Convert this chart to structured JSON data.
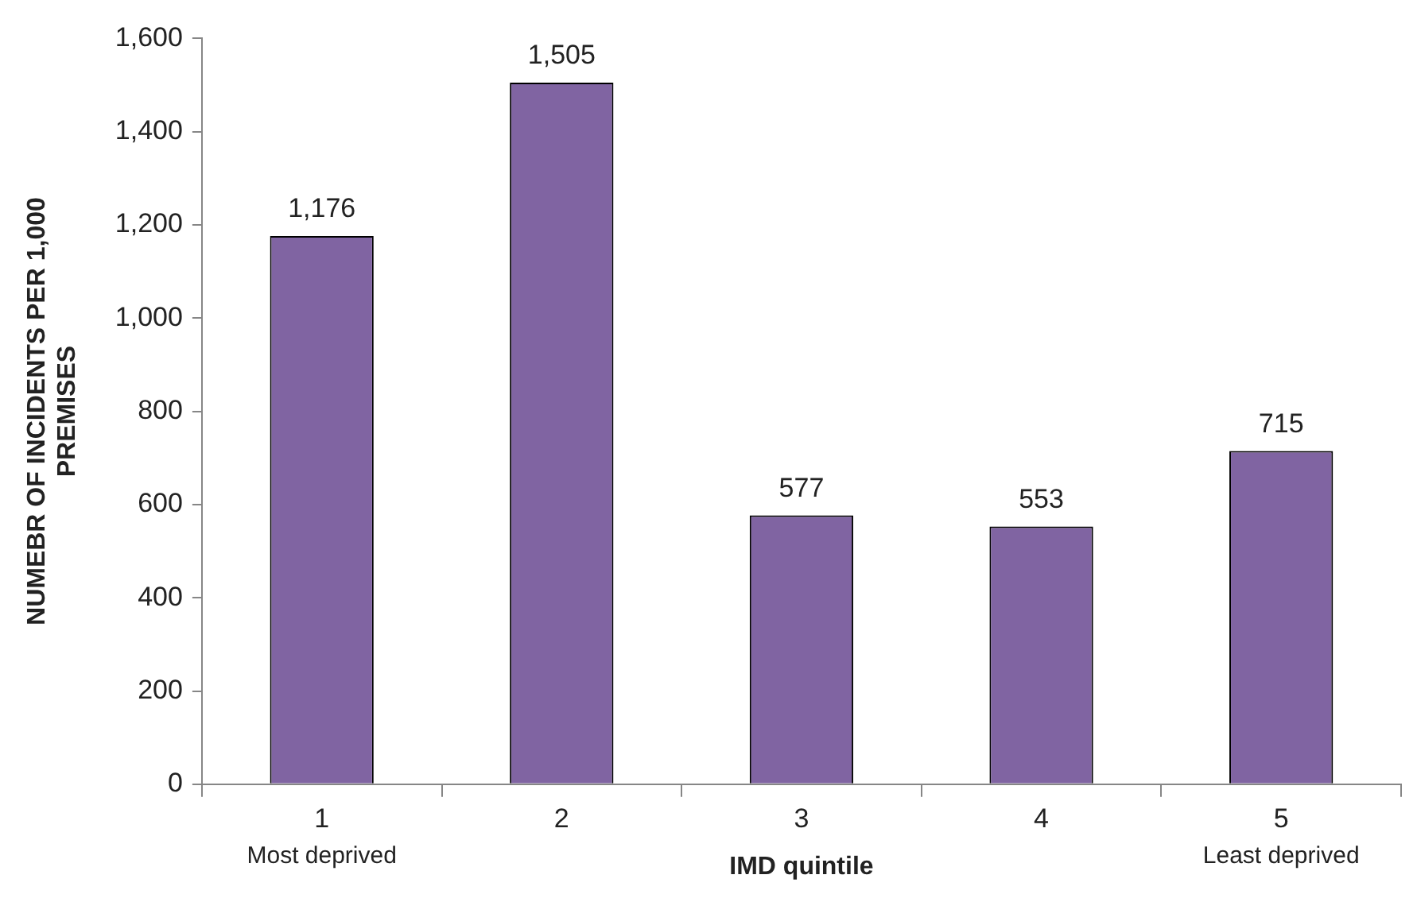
{
  "chart_data": {
    "type": "bar",
    "xlabel": "IMD quintile",
    "ylabel": "NUMEBR OF INCIDENTS PER 1,000 PREMISES",
    "categories": [
      "1",
      "2",
      "3",
      "4",
      "5"
    ],
    "values": [
      1176,
      1505,
      577,
      553,
      715
    ],
    "color": "#8064a2",
    "value_labels": [
      "1,176",
      "1,505",
      "577",
      "553",
      "715"
    ],
    "ylim": [
      0,
      1600
    ],
    "yticks": [
      {
        "value": 0,
        "label": "0"
      },
      {
        "value": 200,
        "label": "200"
      },
      {
        "value": 400,
        "label": "400"
      },
      {
        "value": 600,
        "label": "600"
      },
      {
        "value": 800,
        "label": "800"
      },
      {
        "value": 1000,
        "label": "1,000"
      },
      {
        "value": 1200,
        "label": "1,200"
      },
      {
        "value": 1400,
        "label": "1,400"
      },
      {
        "value": 1600,
        "label": "1,600"
      }
    ],
    "grid": false,
    "legend": false,
    "annotations": [
      "Most deprived",
      "Least deprived"
    ]
  }
}
